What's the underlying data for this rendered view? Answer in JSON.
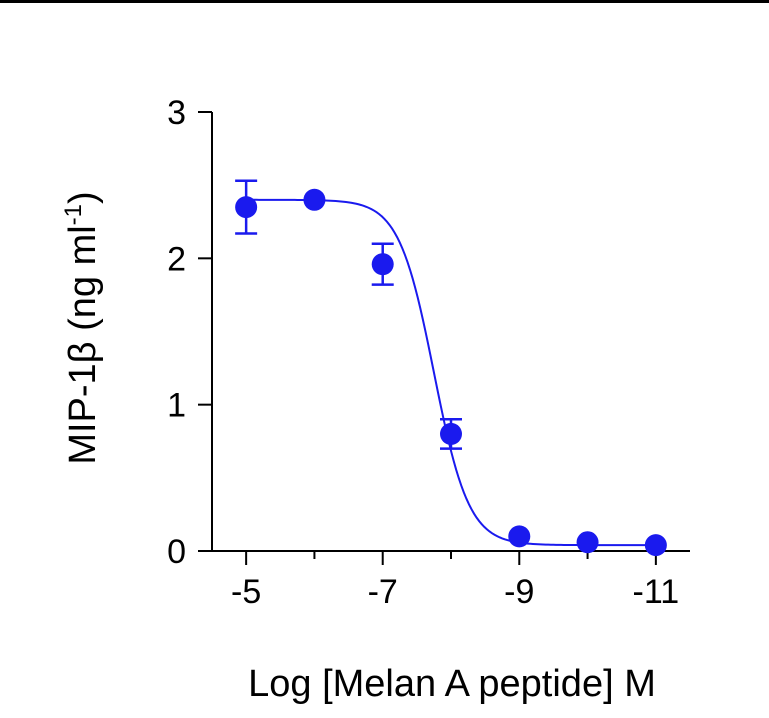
{
  "chart_data": {
    "type": "scatter",
    "title": "",
    "xlabel": "Log [Melan A peptide] M",
    "ylabel": {
      "main": "MIP-1β (ng ml",
      "superscript": "-1",
      "close": ")"
    },
    "xlim": [
      -4.5,
      -11.5
    ],
    "ylim": [
      0,
      3
    ],
    "x_ticks": [
      {
        "value": -5,
        "label": "-5"
      },
      {
        "value": -7,
        "label": "-7"
      },
      {
        "value": -9,
        "label": "-9"
      },
      {
        "value": -11,
        "label": "-11"
      }
    ],
    "x_minor_ticks": [
      -6,
      -8,
      -10
    ],
    "y_ticks": [
      {
        "value": 0,
        "label": "0"
      },
      {
        "value": 1,
        "label": "1"
      },
      {
        "value": 2,
        "label": "2"
      },
      {
        "value": 3,
        "label": "3"
      }
    ],
    "series": [
      {
        "name": "MIP-1β",
        "color": "#1a1aee",
        "points": [
          {
            "x": -5,
            "y": 2.35,
            "err": 0.18
          },
          {
            "x": -6,
            "y": 2.4,
            "err": 0.0
          },
          {
            "x": -7,
            "y": 1.96,
            "err": 0.14
          },
          {
            "x": -8,
            "y": 0.8,
            "err": 0.1
          },
          {
            "x": -9,
            "y": 0.1,
            "err": 0.0
          },
          {
            "x": -10,
            "y": 0.06,
            "err": 0.0
          },
          {
            "x": -11,
            "y": 0.04,
            "err": 0.0
          }
        ],
        "fit": {
          "model": "sigmoid",
          "top": 2.4,
          "bottom": 0.04,
          "log_ec50": -7.75,
          "slope": 1.7
        }
      }
    ]
  }
}
